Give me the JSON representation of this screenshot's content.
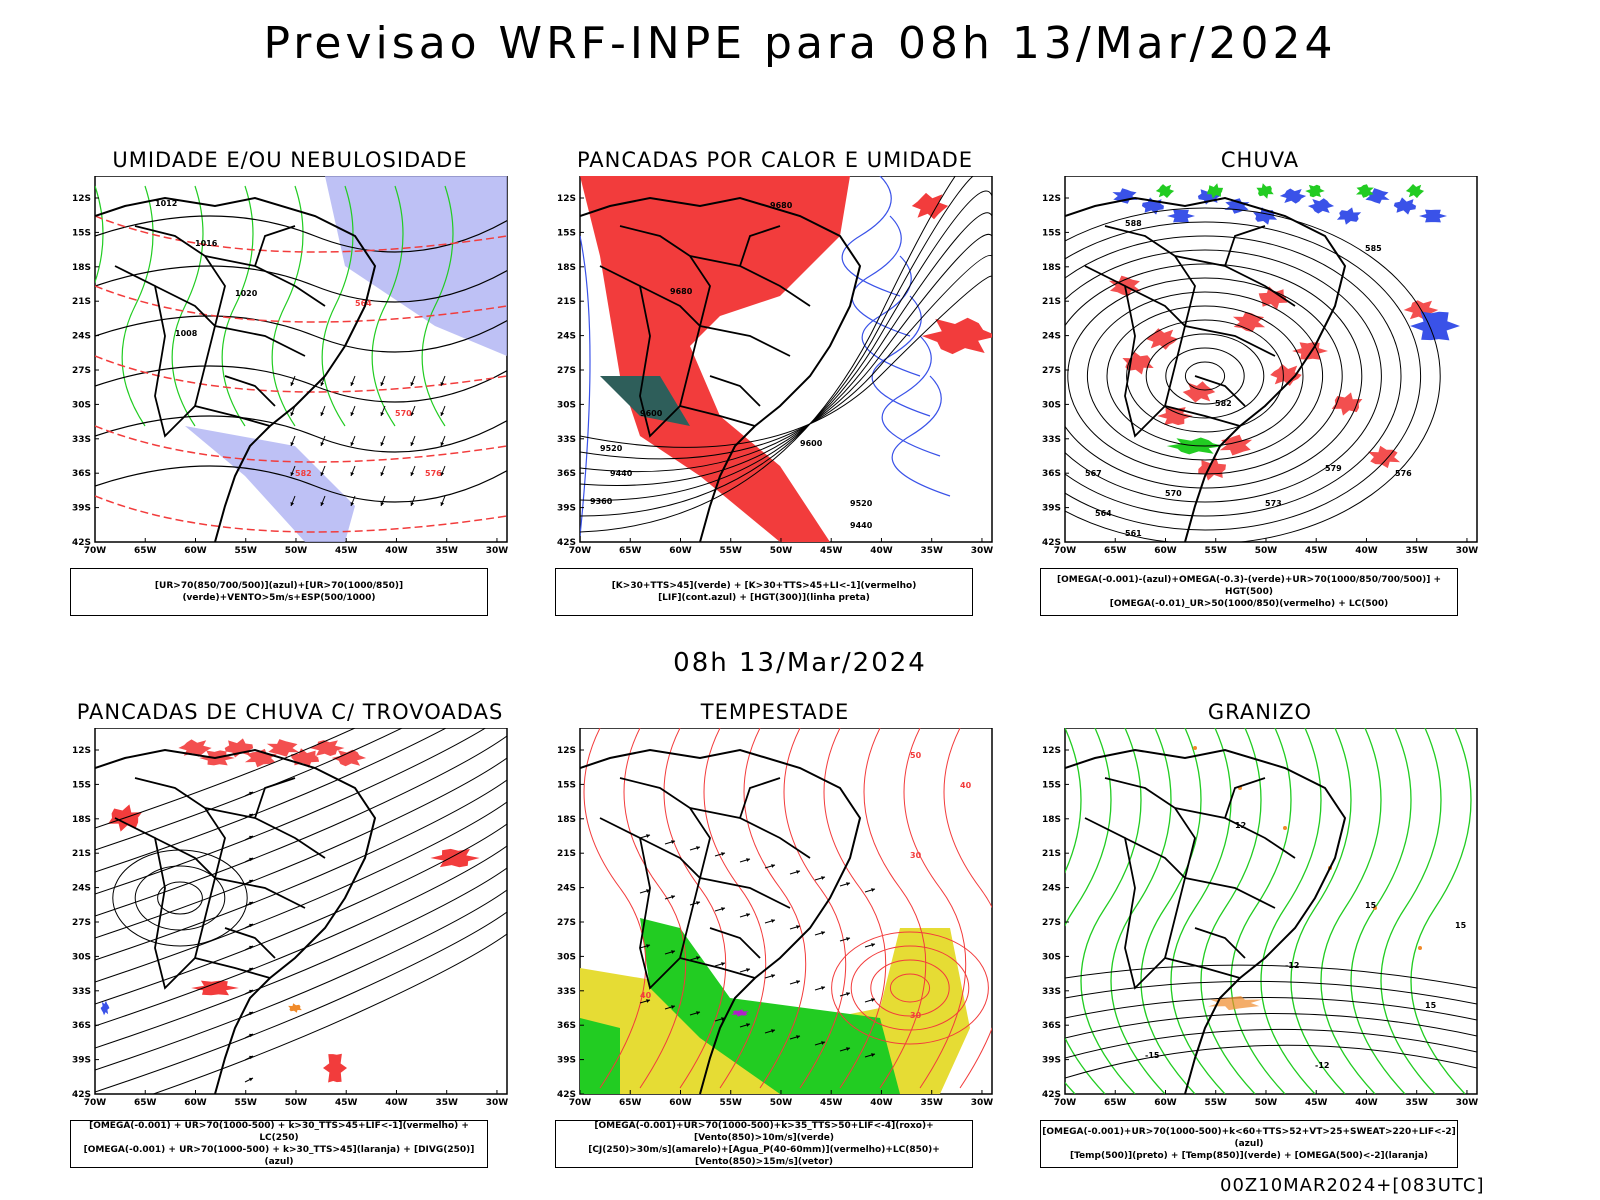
{
  "title": "Previsao WRF-INPE  para 08h 13/Mar/2024",
  "middle_time": "08h 13/Mar/2024",
  "footer": "00Z10MAR2024+[083UTC]",
  "axes": {
    "lat_labels": [
      "12S",
      "15S",
      "18S",
      "21S",
      "24S",
      "27S",
      "30S",
      "33S",
      "36S",
      "39S",
      "42S"
    ],
    "lon_labels": [
      "70W",
      "65W",
      "60W",
      "55W",
      "50W",
      "45W",
      "40W",
      "35W",
      "30W"
    ]
  },
  "colors": {
    "red": "#f23c3c",
    "green": "#22cc22",
    "blue": "#3a52e8",
    "lavender": "#aeb2f2",
    "yellow": "#e6dc34",
    "darkteal": "#2e5e5a",
    "orange": "#f08a2a",
    "purple": "#b020c8"
  },
  "panels": [
    {
      "id": "umidade",
      "title": "UMIDADE E/OU NEBULOSIDADE",
      "legend": [
        "[UR>70(850/700/500)](azul)+[UR>70(1000/850)](verde)+VENTO>5m/s+ESP(500/1000)"
      ],
      "labels": [
        "1012",
        "1016",
        "1020",
        "1008",
        "570",
        "576",
        "582",
        "564"
      ]
    },
    {
      "id": "pancadas_calor",
      "title": "PANCADAS POR CALOR E UMIDADE",
      "legend": [
        "[K>30+TTS>45](verde) + [K>30+TTS>45+LI<-1](vermelho)",
        "[LIF](cont.azul) + [HGT(300)](linha preta)"
      ],
      "labels": [
        "9680",
        "9680",
        "9600",
        "9520",
        "9440",
        "9360",
        "9520",
        "9440",
        "9600"
      ]
    },
    {
      "id": "chuva",
      "title": "CHUVA",
      "legend": [
        "[OMEGA(-0.001)-(azul)+OMEGA(-0.3)-(verde)+UR>70(1000/850/700/500)] + HGT(500)",
        "[OMEGA(-0.01)_UR>50(1000/850)(vermelho) + LC(500)"
      ],
      "labels": [
        "588",
        "585",
        "582",
        "579",
        "576",
        "573",
        "570",
        "567",
        "564",
        "561"
      ]
    },
    {
      "id": "trovoadas",
      "title": "PANCADAS DE CHUVA C/ TROVOADAS",
      "legend": [
        "[OMEGA(-0.001) + UR>70(1000-500) + k>30_TTS>45+LIF<-1](vermelho) + LC(250)",
        "[OMEGA(-0.001) + UR>70(1000-500) + k>30_TTS>45](laranja) + [DIVG(250)](azul)"
      ],
      "labels": []
    },
    {
      "id": "tempestade",
      "title": "TEMPESTADE",
      "legend": [
        "[OMEGA(-0.001)+UR>70(1000-500)+k>35_TTS>50+LIF<-4](roxo)+[Vento(850)>10m/s](verde)",
        "[CJ(250)>30m/s](amarelo)+[Agua_P(40-60mm)](vermelho)+LC(850)+[Vento(850)>15m/s](vetor)"
      ],
      "labels": [
        "40",
        "30",
        "50",
        "40",
        "30"
      ]
    },
    {
      "id": "granizo",
      "title": "GRANIZO",
      "legend": [
        "[OMEGA(-0.001)+UR>70(1000-500)+k<60+TTS>52+VT>25+SWEAT>220+LIF<-2](azul)",
        "[Temp(500)](preto) + [Temp(850)](verde) + [OMEGA(500)<-2](laranja)"
      ],
      "labels": [
        "15",
        "15",
        "-15",
        "-12",
        "12",
        "15",
        "-12"
      ]
    }
  ]
}
